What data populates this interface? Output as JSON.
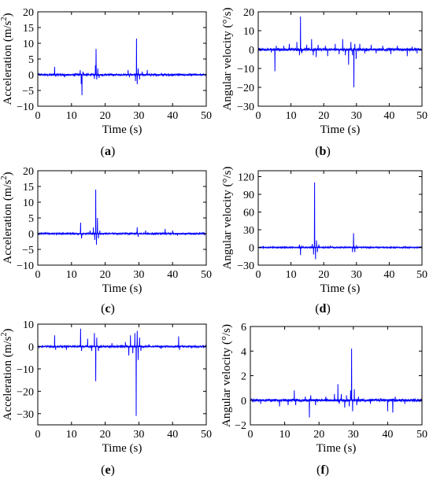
{
  "colors": {
    "line": "#0000ff",
    "axis": "#000000",
    "background": "#ffffff"
  },
  "chart_data": [
    {
      "type": "line",
      "panel_label": "(a)",
      "xlabel": "Time (s)",
      "ylabel": "Acceleration (m/s",
      "ylabel_sup": "2",
      "ylabel_suffix": ")",
      "xlim": [
        0,
        50
      ],
      "ylim": [
        -10,
        20
      ],
      "xticks": [
        0,
        10,
        20,
        30,
        40,
        50
      ],
      "yticks": [
        -10,
        -5,
        0,
        5,
        10,
        15,
        20
      ],
      "grid": false,
      "baseline": 0,
      "noise": 0.25,
      "events": [
        [
          5.0,
          2.5
        ],
        [
          5.3,
          -0.6
        ],
        [
          8.0,
          -0.8
        ],
        [
          12.6,
          1.5
        ],
        [
          12.9,
          -3.0
        ],
        [
          13.1,
          -6.5
        ],
        [
          13.4,
          1.0
        ],
        [
          16.8,
          -1.3
        ],
        [
          17.1,
          3.0
        ],
        [
          17.3,
          8.2
        ],
        [
          17.5,
          -1.5
        ],
        [
          17.8,
          2.0
        ],
        [
          18.2,
          -1.0
        ],
        [
          26.8,
          1.5
        ],
        [
          27.2,
          -0.8
        ],
        [
          29.0,
          -2.0
        ],
        [
          29.3,
          11.5
        ],
        [
          29.5,
          -3.0
        ],
        [
          29.8,
          2.0
        ],
        [
          30.2,
          -1.5
        ],
        [
          31.0,
          1.0
        ],
        [
          32.5,
          1.5
        ],
        [
          33.5,
          -0.5
        ]
      ]
    },
    {
      "type": "line",
      "panel_label": "(b)",
      "xlabel": "Time (s)",
      "ylabel": "Angular velocity (°/s)",
      "xlim": [
        0,
        50
      ],
      "ylim": [
        -30,
        20
      ],
      "xticks": [
        0,
        10,
        20,
        30,
        40,
        50
      ],
      "yticks": [
        -30,
        -20,
        -10,
        0,
        10,
        20
      ],
      "grid": false,
      "baseline": 0,
      "noise": 0.6,
      "events": [
        [
          4.0,
          -1.5
        ],
        [
          5.1,
          -11.5
        ],
        [
          5.5,
          2.0
        ],
        [
          7.8,
          2.0
        ],
        [
          9.5,
          3.0
        ],
        [
          11.8,
          4.0
        ],
        [
          12.6,
          -3.0
        ],
        [
          12.9,
          17.5
        ],
        [
          13.3,
          -2.0
        ],
        [
          14.8,
          2.5
        ],
        [
          16.3,
          5.5
        ],
        [
          16.8,
          -3.0
        ],
        [
          17.7,
          -4.0
        ],
        [
          18.3,
          2.5
        ],
        [
          20.5,
          2.0
        ],
        [
          21.2,
          -3.5
        ],
        [
          23.5,
          3.0
        ],
        [
          24.7,
          -2.5
        ],
        [
          25.8,
          5.5
        ],
        [
          26.6,
          -3.0
        ],
        [
          27.6,
          -8.0
        ],
        [
          28.3,
          4.0
        ],
        [
          28.8,
          -3.0
        ],
        [
          29.2,
          -20.0
        ],
        [
          29.5,
          3.0
        ],
        [
          29.9,
          -5.0
        ],
        [
          31.0,
          3.0
        ],
        [
          32.5,
          -2.0
        ],
        [
          34.5,
          2.5
        ],
        [
          36.0,
          -2.0
        ],
        [
          38.0,
          2.0
        ],
        [
          40.5,
          -2.5
        ],
        [
          42.5,
          2.0
        ],
        [
          45.5,
          -3.5
        ],
        [
          47.0,
          1.5
        ],
        [
          48.5,
          -2.0
        ]
      ]
    },
    {
      "type": "line",
      "panel_label": "(c)",
      "xlabel": "Time (s)",
      "ylabel": "Acceleration (m/s",
      "ylabel_sup": "2",
      "ylabel_suffix": ")",
      "xlim": [
        0,
        50
      ],
      "ylim": [
        -10,
        20
      ],
      "xticks": [
        0,
        10,
        20,
        30,
        40,
        50
      ],
      "yticks": [
        -10,
        -5,
        0,
        5,
        10,
        15,
        20
      ],
      "grid": false,
      "baseline": 0,
      "noise": 0.2,
      "events": [
        [
          12.7,
          3.5
        ],
        [
          13.0,
          -1.5
        ],
        [
          15.5,
          1.0
        ],
        [
          16.5,
          2.0
        ],
        [
          16.9,
          -2.0
        ],
        [
          17.2,
          14.0
        ],
        [
          17.4,
          -3.5
        ],
        [
          17.7,
          5.0
        ],
        [
          18.0,
          -1.5
        ],
        [
          18.4,
          1.0
        ],
        [
          29.5,
          2.0
        ],
        [
          29.8,
          -1.0
        ],
        [
          32.0,
          1.0
        ],
        [
          37.8,
          1.5
        ],
        [
          40.0,
          1.0
        ],
        [
          41.5,
          -0.6
        ]
      ]
    },
    {
      "type": "line",
      "panel_label": "(d)",
      "xlabel": "Time (s)",
      "ylabel": "Angular velocity (°/s)",
      "xlim": [
        0,
        50
      ],
      "ylim": [
        -30,
        130
      ],
      "xticks": [
        0,
        10,
        20,
        30,
        40,
        50
      ],
      "yticks": [
        -30,
        0,
        30,
        60,
        90,
        120
      ],
      "grid": false,
      "baseline": 0,
      "noise": 0.8,
      "events": [
        [
          12.6,
          5.0
        ],
        [
          12.9,
          -13.0
        ],
        [
          13.3,
          3.0
        ],
        [
          16.5,
          6.0
        ],
        [
          16.9,
          -12.0
        ],
        [
          17.2,
          110.0
        ],
        [
          17.5,
          -20.0
        ],
        [
          17.8,
          12.0
        ],
        [
          18.1,
          -8.0
        ],
        [
          18.5,
          5.0
        ],
        [
          22.0,
          3.0
        ],
        [
          25.0,
          -2.0
        ],
        [
          28.8,
          -8.0
        ],
        [
          29.1,
          24.0
        ],
        [
          29.5,
          -8.0
        ],
        [
          29.9,
          4.0
        ],
        [
          36.0,
          2.0
        ],
        [
          42.0,
          -2.0
        ]
      ]
    },
    {
      "type": "line",
      "panel_label": "(e)",
      "xlabel": "Time (s)",
      "ylabel": "Acceleration (m/s",
      "ylabel_sup": "2",
      "ylabel_suffix": ")",
      "xlim": [
        0,
        50
      ],
      "ylim": [
        -35,
        10
      ],
      "xticks": [
        0,
        10,
        20,
        30,
        40,
        50
      ],
      "yticks": [
        -30,
        -20,
        -10,
        0,
        10
      ],
      "grid": false,
      "baseline": 0,
      "noise": 0.3,
      "events": [
        [
          5.0,
          5.0
        ],
        [
          5.3,
          -1.5
        ],
        [
          8.5,
          -1.5
        ],
        [
          12.7,
          8.0
        ],
        [
          13.0,
          -2.0
        ],
        [
          14.8,
          3.5
        ],
        [
          16.0,
          -2.0
        ],
        [
          16.8,
          6.0
        ],
        [
          17.2,
          -15.5
        ],
        [
          17.5,
          4.0
        ],
        [
          18.0,
          -2.0
        ],
        [
          22.0,
          1.5
        ],
        [
          26.0,
          2.0
        ],
        [
          27.0,
          -4.0
        ],
        [
          27.5,
          5.0
        ],
        [
          28.2,
          -3.0
        ],
        [
          28.8,
          6.0
        ],
        [
          29.2,
          -31.0
        ],
        [
          29.5,
          7.0
        ],
        [
          29.8,
          -6.0
        ],
        [
          30.2,
          4.0
        ],
        [
          30.6,
          -2.0
        ],
        [
          33.0,
          1.0
        ],
        [
          36.5,
          -1.0
        ],
        [
          41.8,
          4.5
        ],
        [
          42.1,
          -1.5
        ]
      ]
    },
    {
      "type": "line",
      "panel_label": "(f)",
      "xlabel": "Time (s)",
      "ylabel": "Angular velocity (°/s)",
      "xlim": [
        0,
        50
      ],
      "ylim": [
        -2,
        6
      ],
      "xticks": [
        0,
        10,
        20,
        30,
        40,
        50
      ],
      "yticks": [
        -2,
        0,
        2,
        4,
        6
      ],
      "grid": false,
      "baseline": 0,
      "noise": 0.09,
      "events": [
        [
          3.0,
          -0.3
        ],
        [
          8.5,
          -0.5
        ],
        [
          11.0,
          -0.4
        ],
        [
          12.8,
          0.8
        ],
        [
          13.2,
          -0.4
        ],
        [
          16.0,
          0.3
        ],
        [
          17.2,
          -1.4
        ],
        [
          17.6,
          0.4
        ],
        [
          19.0,
          -0.4
        ],
        [
          22.0,
          0.3
        ],
        [
          24.5,
          0.5
        ],
        [
          25.5,
          1.3
        ],
        [
          25.9,
          -0.3
        ],
        [
          26.5,
          0.5
        ],
        [
          27.5,
          -0.6
        ],
        [
          28.0,
          0.4
        ],
        [
          28.8,
          -0.5
        ],
        [
          29.2,
          0.8
        ],
        [
          29.5,
          4.2
        ],
        [
          29.8,
          -0.9
        ],
        [
          30.3,
          0.9
        ],
        [
          31.0,
          -0.4
        ],
        [
          31.5,
          0.3
        ],
        [
          35.0,
          -0.3
        ],
        [
          40.0,
          -0.9
        ],
        [
          41.5,
          -1.0
        ],
        [
          42.2,
          0.3
        ],
        [
          45.0,
          -0.3
        ]
      ]
    }
  ]
}
